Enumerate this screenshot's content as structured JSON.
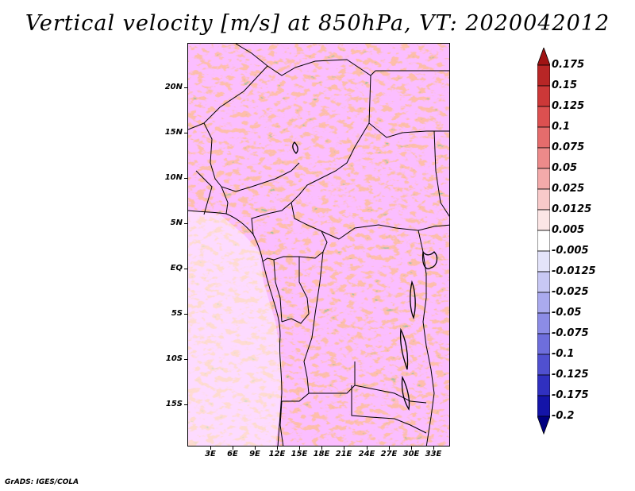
{
  "title": "Vertical velocity [m/s] at 850hPa, VT: 2020042012",
  "footer": "GrADS: IGES/COLA",
  "map": {
    "y_axis": [
      "20N",
      "15N",
      "10N",
      "5N",
      "EQ",
      "5S",
      "10S",
      "15S"
    ],
    "x_axis": [
      "3E",
      "6E",
      "9E",
      "12E",
      "15E",
      "18E",
      "21E",
      "24E",
      "27E",
      "30E",
      "33E"
    ]
  },
  "colorbar": {
    "labels": [
      "0.175",
      "0.15",
      "0.125",
      "0.1",
      "0.075",
      "0.05",
      "0.025",
      "0.0125",
      "0.005",
      "-0.005",
      "-0.0125",
      "-0.025",
      "-0.05",
      "-0.075",
      "-0.1",
      "-0.125",
      "-0.175",
      "-0.2"
    ],
    "colors": [
      "#a01414",
      "#b82626",
      "#cc3838",
      "#dc5050",
      "#e56c6c",
      "#ec8a8a",
      "#f3aaaa",
      "#f8caca",
      "#fce6e6",
      "#ffffff",
      "#e4e4fa",
      "#c8c8f4",
      "#aaaaee",
      "#8c8ce6",
      "#6e6edc",
      "#5050d0",
      "#3030c0",
      "#1414a8",
      "#000080"
    ]
  }
}
